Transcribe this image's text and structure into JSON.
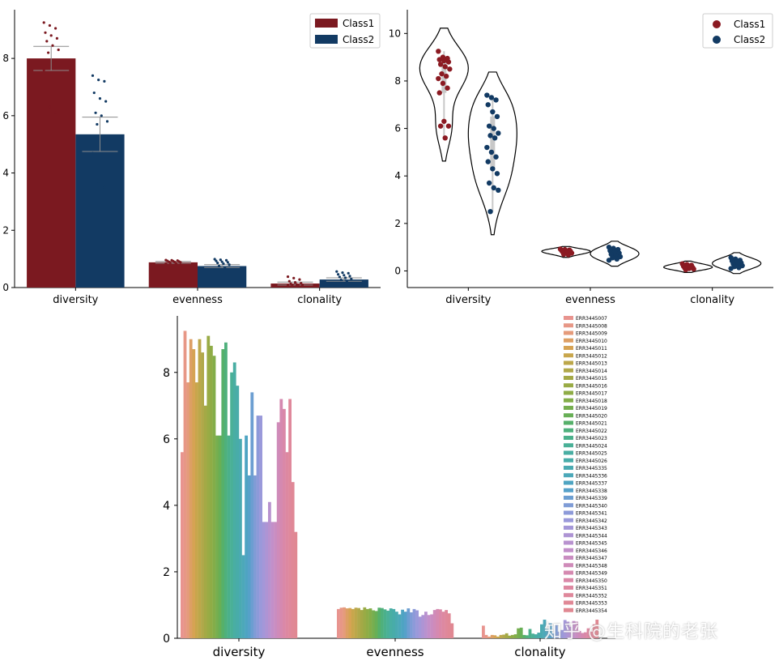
{
  "chart_data": [
    {
      "id": "bar",
      "type": "bar",
      "categories": [
        "diversity",
        "evenness",
        "clonality"
      ],
      "series": [
        {
          "name": "Class1",
          "color": "#7b1920",
          "values": [
            8.0,
            0.88,
            0.14
          ],
          "err": [
            0.42,
            0.03,
            0.05
          ],
          "points": [
            [
              9.25,
              9.15,
              9.05,
              8.9,
              8.8,
              8.7,
              8.6,
              8.45,
              8.3,
              8.2,
              7.9,
              7.6,
              6.3,
              6.1
            ],
            [
              0.96,
              0.95,
              0.94,
              0.93,
              0.92,
              0.91,
              0.9,
              0.89,
              0.88,
              0.87,
              0.85,
              0.84
            ],
            [
              0.38,
              0.33,
              0.28,
              0.22,
              0.18,
              0.15,
              0.13,
              0.11,
              0.1,
              0.09,
              0.08,
              0.07
            ]
          ]
        },
        {
          "name": "Class2",
          "color": "#123a63",
          "values": [
            5.35,
            0.75,
            0.28
          ],
          "err": [
            0.6,
            0.05,
            0.06
          ],
          "points": [
            [
              7.4,
              7.25,
              7.2,
              6.8,
              6.6,
              6.5,
              6.1,
              6.0,
              5.8,
              5.7,
              5.0,
              4.7,
              3.7,
              3.5
            ],
            [
              0.99,
              0.97,
              0.95,
              0.93,
              0.9,
              0.88,
              0.86,
              0.83,
              0.8,
              0.75,
              0.7,
              0.6
            ],
            [
              0.56,
              0.52,
              0.5,
              0.46,
              0.43,
              0.4,
              0.37,
              0.34,
              0.3,
              0.27,
              0.22,
              0.15
            ]
          ]
        }
      ],
      "yticks": [
        0,
        2,
        4,
        6,
        8
      ],
      "ylim": [
        0,
        9.7
      ]
    },
    {
      "id": "violin",
      "type": "violin",
      "categories": [
        "diversity",
        "evenness",
        "clonality"
      ],
      "series": [
        {
          "name": "Class1",
          "color": "#8b1a22",
          "points": [
            [
              9.25,
              9.0,
              8.95,
              8.9,
              8.85,
              8.8,
              8.7,
              8.6,
              8.5,
              8.3,
              8.2,
              8.1,
              7.9,
              7.7,
              7.5,
              6.3,
              6.1,
              6.1,
              5.6
            ],
            [
              0.92,
              0.9,
              0.88,
              0.86,
              0.84,
              0.82,
              0.8,
              0.78,
              0.75,
              0.7,
              0.68
            ],
            [
              0.3,
              0.27,
              0.24,
              0.2,
              0.17,
              0.15,
              0.13,
              0.1,
              0.08,
              0.05
            ]
          ]
        },
        {
          "name": "Class2",
          "color": "#123a63",
          "points": [
            [
              7.4,
              7.3,
              7.2,
              7.0,
              6.7,
              6.5,
              6.1,
              6.0,
              5.8,
              5.7,
              5.6,
              5.2,
              5.0,
              4.8,
              4.6,
              4.3,
              4.1,
              3.7,
              3.5,
              3.4,
              2.5
            ],
            [
              1.0,
              0.95,
              0.9,
              0.85,
              0.8,
              0.75,
              0.7,
              0.65,
              0.6,
              0.55,
              0.5,
              0.45
            ],
            [
              0.56,
              0.5,
              0.45,
              0.42,
              0.38,
              0.34,
              0.3,
              0.26,
              0.22,
              0.18,
              0.14,
              0.1
            ]
          ]
        }
      ],
      "yticks": [
        0,
        2,
        4,
        6,
        8,
        10
      ],
      "ylim": [
        -0.7,
        11.0
      ]
    },
    {
      "id": "samples",
      "type": "bar",
      "categories": [
        "diversity",
        "evenness",
        "clonality"
      ],
      "series_names": [
        "ERR3445007",
        "ERR3445008",
        "ERR3445009",
        "ERR3445010",
        "ERR3445011",
        "ERR3445012",
        "ERR3445013",
        "ERR3445014",
        "ERR3445015",
        "ERR3445016",
        "ERR3445017",
        "ERR3445018",
        "ERR3445019",
        "ERR3445020",
        "ERR3445021",
        "ERR3445022",
        "ERR3445023",
        "ERR3445024",
        "ERR3445025",
        "ERR3445026",
        "ERR3445335",
        "ERR3445336",
        "ERR3445337",
        "ERR3445338",
        "ERR3445339",
        "ERR3445340",
        "ERR3445341",
        "ERR3445342",
        "ERR3445343",
        "ERR3445344",
        "ERR3445345",
        "ERR3445346",
        "ERR3445347",
        "ERR3445348",
        "ERR3445349",
        "ERR3445350",
        "ERR3445351",
        "ERR3445352",
        "ERR3445353",
        "ERR3445354"
      ],
      "colors": [
        "#e8948f",
        "#e79786",
        "#e59b7b",
        "#dd9f64",
        "#d6a353",
        "#c8a64c",
        "#bca74a",
        "#b0a84a",
        "#a4a946",
        "#99ab45",
        "#8fac46",
        "#83ad49",
        "#76ae4f",
        "#68af56",
        "#56b06a",
        "#4fb07c",
        "#4bb08b",
        "#4ab097",
        "#49aea3",
        "#48aca9",
        "#4aaab1",
        "#4ca8b9",
        "#4ea4c2",
        "#56a1c9",
        "#6c9ed1",
        "#7f9cd6",
        "#8d9ad9",
        "#9a99da",
        "#a497d8",
        "#ae94d4",
        "#b892cf",
        "#c28fc9",
        "#c98dc1",
        "#cf8bb9",
        "#d589b0",
        "#da88a8",
        "#dd88a1",
        "#df889b",
        "#e08896",
        "#e08892"
      ],
      "values": [
        [
          5.6,
          9.25,
          7.7,
          9.0,
          8.7,
          7.7,
          9.0,
          8.6,
          7.0,
          9.1,
          8.8,
          8.5,
          6.1,
          6.1,
          8.7,
          8.9,
          6.1,
          8.0,
          8.3,
          7.6,
          6.0,
          2.5,
          6.1,
          4.9,
          7.4,
          4.9,
          6.7,
          6.7,
          3.5,
          3.5,
          4.1,
          3.5,
          3.5,
          6.5,
          7.2,
          6.9,
          5.6,
          7.2,
          4.7,
          3.2
        ],
        [
          0.88,
          0.92,
          0.93,
          0.9,
          0.91,
          0.88,
          0.92,
          0.91,
          0.85,
          0.93,
          0.88,
          0.9,
          0.84,
          0.82,
          0.92,
          0.91,
          0.87,
          0.83,
          0.9,
          0.88,
          0.8,
          0.72,
          0.86,
          0.8,
          0.9,
          0.78,
          0.88,
          0.84,
          0.65,
          0.7,
          0.8,
          0.7,
          0.72,
          0.85,
          0.88,
          0.87,
          0.8,
          0.85,
          0.75,
          0.45
        ],
        [
          0.38,
          0.1,
          0.05,
          0.1,
          0.09,
          0.05,
          0.1,
          0.11,
          0.15,
          0.08,
          0.1,
          0.12,
          0.3,
          0.32,
          0.1,
          0.09,
          0.28,
          0.14,
          0.12,
          0.17,
          0.42,
          0.56,
          0.28,
          0.45,
          0.14,
          0.4,
          0.2,
          0.25,
          0.55,
          0.5,
          0.35,
          0.52,
          0.5,
          0.22,
          0.16,
          0.18,
          0.3,
          0.2,
          0.42,
          0.56
        ]
      ],
      "yticks": [
        0,
        2,
        4,
        6,
        8
      ],
      "ylim": [
        0,
        9.7
      ]
    }
  ],
  "watermark": "知乎 @生科院的老张"
}
